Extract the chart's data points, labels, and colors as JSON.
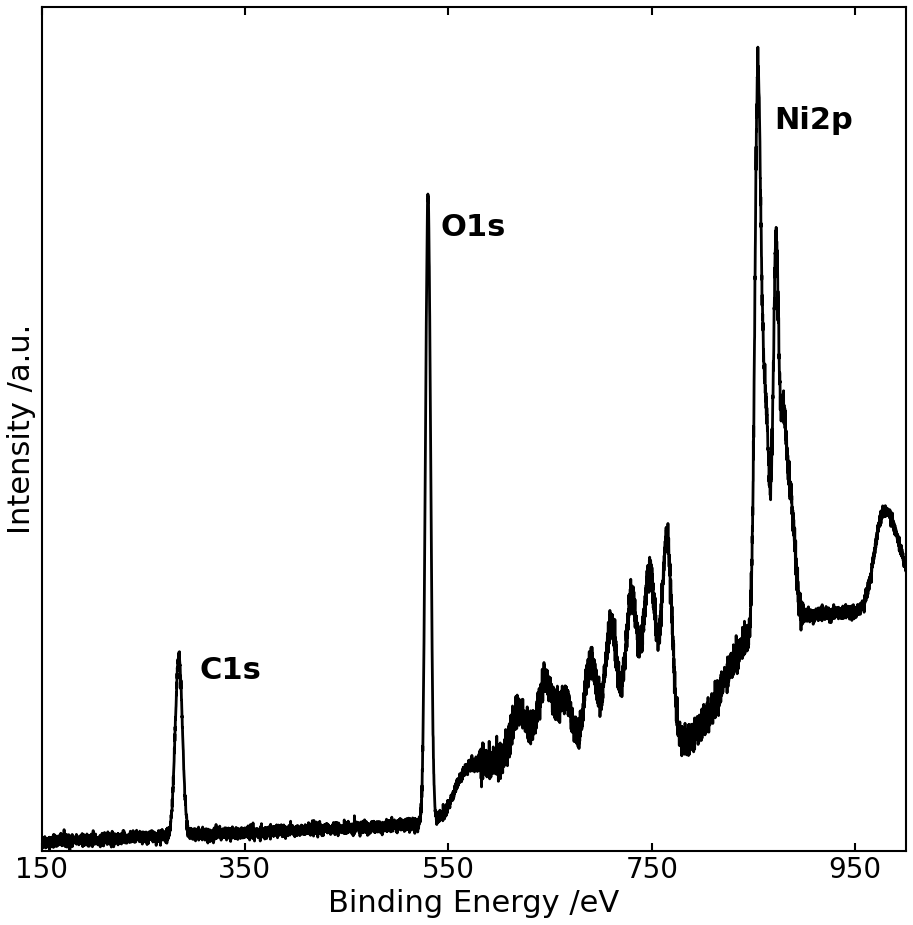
{
  "xlabel": "Binding Energy /eV",
  "ylabel": "Intensity /a.u.",
  "xlim": [
    150,
    1000
  ],
  "ylim": [
    0,
    1.05
  ],
  "xticks": [
    150,
    350,
    550,
    750,
    950
  ],
  "line_color": "#000000",
  "line_width": 2.0,
  "background_color": "#ffffff",
  "xlabel_fontsize": 22,
  "ylabel_fontsize": 22,
  "tick_fontsize": 20,
  "c1s_label": "C1s",
  "o1s_label": "O1s",
  "ni2p_label": "Ni2p",
  "label_fontsize": 22
}
